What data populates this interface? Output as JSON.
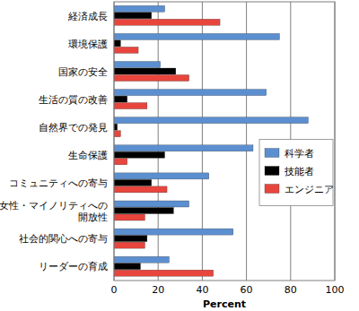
{
  "chart_data": {
    "type": "bar",
    "orientation": "horizontal",
    "x_label": "Percent",
    "categories": [
      "経済成長",
      "環境保護",
      "国家の安全",
      "生活の質の改善",
      "自然界での発見",
      "生命保護",
      "コミュニティへの寄与",
      "女性・マイノリティへの\n開放性",
      "社会的関心への寄与",
      "リーダーの育成"
    ],
    "series": [
      {
        "name": "科学者",
        "color": "#5b8fd0",
        "values": [
          23,
          75,
          21,
          69,
          88,
          63,
          43,
          34,
          54,
          25
        ]
      },
      {
        "name": "技能者",
        "color": "#000000",
        "values": [
          17,
          3,
          28,
          6,
          1.5,
          23,
          17,
          27,
          15,
          12
        ]
      },
      {
        "name": "エンジニア",
        "color": "#e8453c",
        "values": [
          48,
          11,
          34,
          15,
          3,
          6,
          24,
          14,
          14,
          45
        ]
      }
    ],
    "xlim": [
      0,
      100
    ],
    "xticks": [
      0,
      20,
      40,
      60,
      80,
      100
    ],
    "grid": true,
    "legend": "right"
  }
}
